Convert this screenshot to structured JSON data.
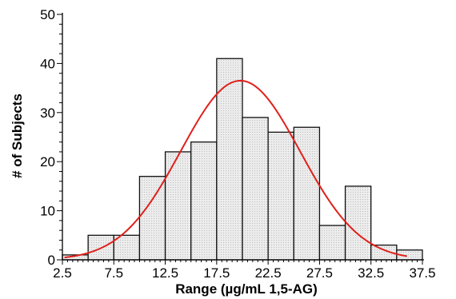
{
  "chart_data": {
    "type": "bar",
    "subtype": "histogram",
    "xlabel": "Range (µg/mL 1,5-AG)",
    "ylabel": "# of Subjects",
    "x_tick_labels": [
      "2.5",
      "7.5",
      "12.5",
      "17.5",
      "22.5",
      "27.5",
      "32.5",
      "37.5"
    ],
    "y_tick_labels": [
      "0",
      "10",
      "20",
      "30",
      "40",
      "50"
    ],
    "xlim": [
      2.5,
      37.5
    ],
    "ylim": [
      0,
      50
    ],
    "bin_width": 2.5,
    "bins": [
      {
        "start": 2.5,
        "end": 5.0,
        "value": 1
      },
      {
        "start": 5.0,
        "end": 7.5,
        "value": 5
      },
      {
        "start": 7.5,
        "end": 10.0,
        "value": 5
      },
      {
        "start": 10.0,
        "end": 12.5,
        "value": 17
      },
      {
        "start": 12.5,
        "end": 15.0,
        "value": 22
      },
      {
        "start": 15.0,
        "end": 17.5,
        "value": 24
      },
      {
        "start": 17.5,
        "end": 20.0,
        "value": 41
      },
      {
        "start": 20.0,
        "end": 22.5,
        "value": 29
      },
      {
        "start": 22.5,
        "end": 25.0,
        "value": 26
      },
      {
        "start": 25.0,
        "end": 27.5,
        "value": 27
      },
      {
        "start": 27.5,
        "end": 30.0,
        "value": 7
      },
      {
        "start": 30.0,
        "end": 32.5,
        "value": 15
      },
      {
        "start": 32.5,
        "end": 35.0,
        "value": 3
      },
      {
        "start": 35.0,
        "end": 37.5,
        "value": 2
      }
    ],
    "fit_curve": {
      "type": "normal",
      "color": "#e0201b",
      "peak_x": 19.8,
      "peak_y": 36.5,
      "sigma": 5.8,
      "x_range": [
        2.7,
        36.0
      ]
    },
    "bar_fill": "#e6e6e6",
    "bar_stroke": "#111111",
    "grid": false,
    "legend": "none"
  }
}
